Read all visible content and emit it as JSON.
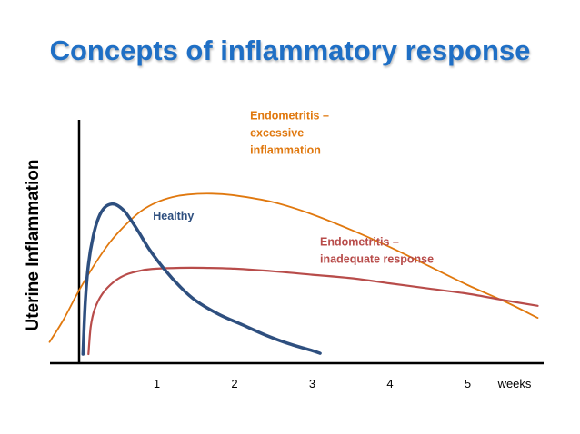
{
  "slide": {
    "title": "Concepts of inflammatory response"
  },
  "colors": {
    "title": "#1f6fc5",
    "healthy": "#2e4f7f",
    "excessive": "#e0780e",
    "inadequate": "#b84c4a",
    "axis": "#000000"
  },
  "chart_data": {
    "type": "line",
    "ylabel": "Uterine  Inflammation",
    "xlabel": "weeks",
    "xlim": [
      -0.95,
      5.9
    ],
    "ylim": [
      0,
      10
    ],
    "x_ticks": [
      "1",
      "2",
      "3",
      "4",
      "5"
    ],
    "y_ticks": [],
    "grid": false,
    "legend": "none",
    "series": [
      {
        "name": "Healthy",
        "color": "#2e4f7f",
        "x": [
          0.05,
          0.08,
          0.12,
          0.18,
          0.25,
          0.33,
          0.42,
          0.5,
          0.6,
          0.75,
          0.9,
          1.1,
          1.3,
          1.5,
          1.8,
          2.1,
          2.4,
          2.7,
          3.0,
          3.1
        ],
        "y": [
          0.0,
          3.0,
          5.2,
          6.8,
          7.9,
          8.5,
          8.7,
          8.6,
          8.2,
          7.2,
          6.1,
          4.9,
          3.9,
          3.1,
          2.3,
          1.7,
          1.1,
          0.6,
          0.2,
          0.05
        ]
      },
      {
        "name": "Endometritis – excessive inflammation",
        "color": "#e0780e",
        "x": [
          -0.38,
          -0.2,
          0.0,
          0.2,
          0.4,
          0.6,
          0.8,
          1.0,
          1.2,
          1.4,
          1.7,
          2.0,
          2.5,
          3.0,
          3.5,
          4.0,
          4.5,
          5.0,
          5.5,
          5.9
        ],
        "y": [
          0.7,
          2.0,
          3.7,
          5.2,
          6.5,
          7.5,
          8.3,
          8.8,
          9.1,
          9.25,
          9.3,
          9.2,
          8.8,
          8.1,
          7.2,
          6.2,
          5.1,
          4.0,
          3.0,
          2.1
        ]
      },
      {
        "name": "Endometritis – inadequate response",
        "color": "#b84c4a",
        "x": [
          0.12,
          0.15,
          0.2,
          0.3,
          0.45,
          0.6,
          0.8,
          1.0,
          1.3,
          1.6,
          2.0,
          2.5,
          3.0,
          3.5,
          4.0,
          4.5,
          5.0,
          5.5,
          5.9
        ],
        "y": [
          0.0,
          1.6,
          2.6,
          3.5,
          4.2,
          4.6,
          4.85,
          4.95,
          5.0,
          5.0,
          4.95,
          4.8,
          4.6,
          4.4,
          4.1,
          3.8,
          3.5,
          3.1,
          2.8
        ]
      }
    ],
    "annotations": [
      {
        "lines": [
          "Endometritis –",
          "excessive",
          "inflammation"
        ],
        "color": "#e0780e",
        "x": 2.2,
        "y": 13.6
      },
      {
        "lines": [
          "Healthy"
        ],
        "color": "#2e4f7f",
        "x": 0.95,
        "y": 7.8
      },
      {
        "lines": [
          "Endometritis –",
          "inadequate response"
        ],
        "color": "#b84c4a",
        "x": 3.1,
        "y": 6.3
      }
    ]
  }
}
